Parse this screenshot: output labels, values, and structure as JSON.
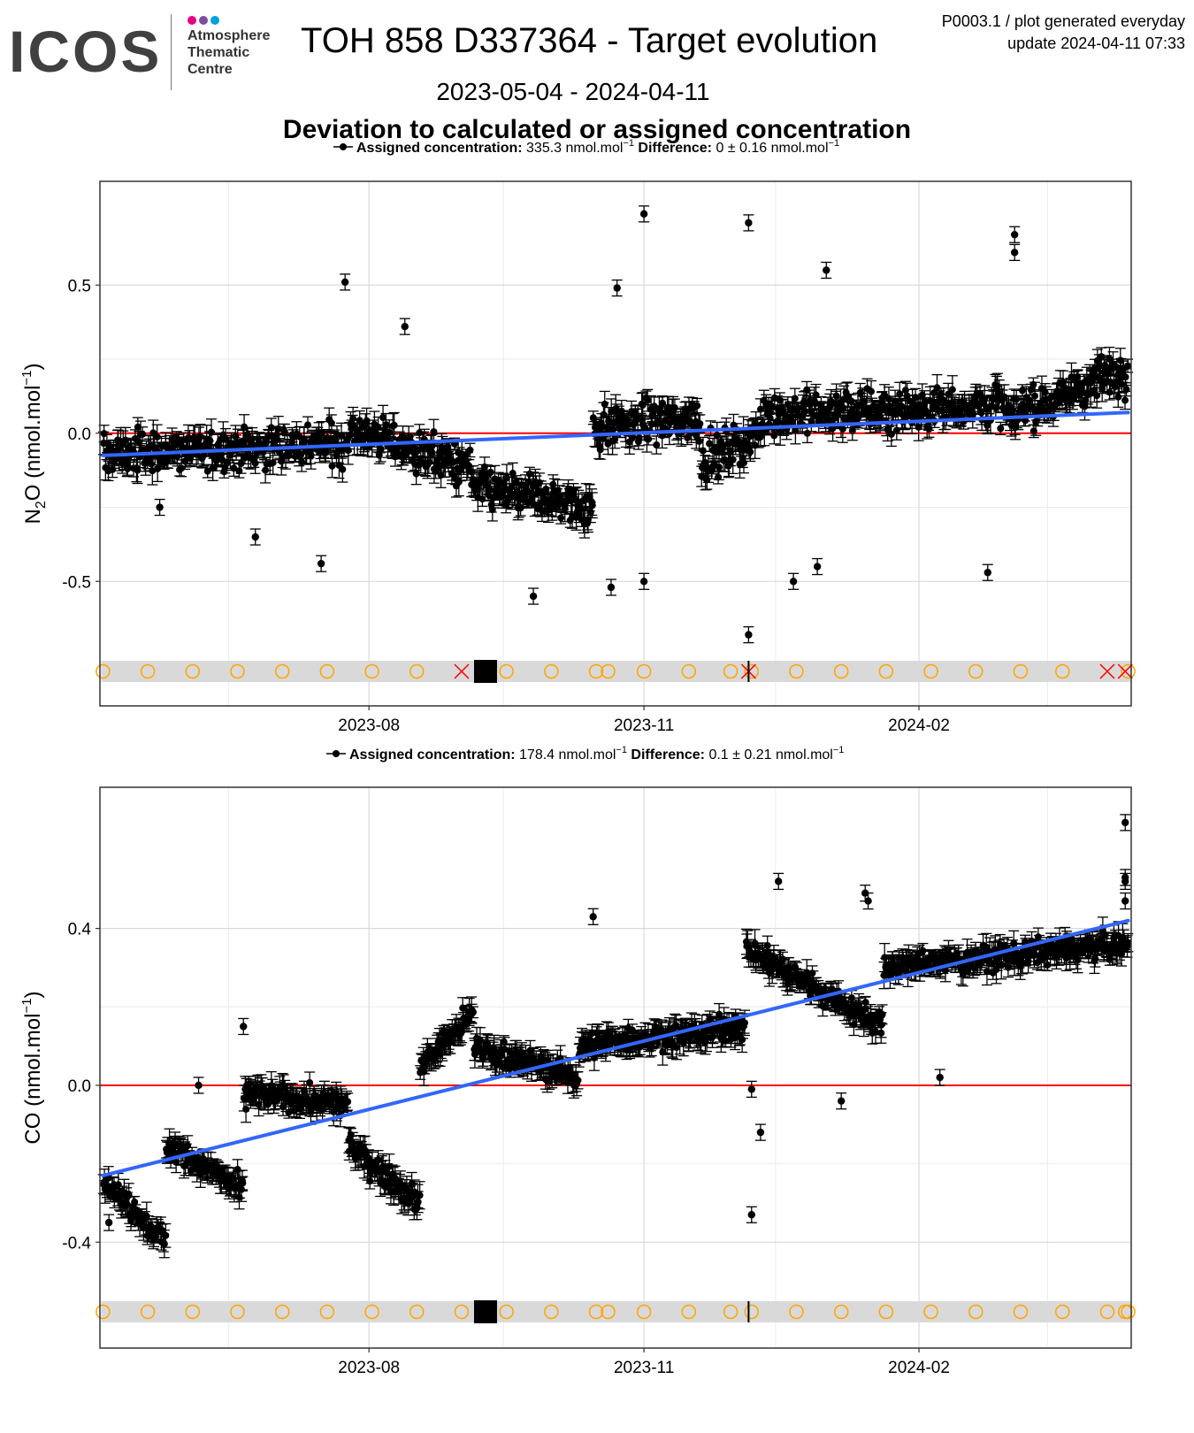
{
  "header": {
    "logo_text": "ICOS",
    "logo_sub1": "Atmosphere",
    "logo_sub2": "Thematic",
    "logo_sub3": "Centre",
    "logo_dot_colors": [
      "#e5007e",
      "#7b4fa0",
      "#00a1d9"
    ],
    "title": "TOH 858 D337364 - Target evolution",
    "meta_line1": "P0003.1 / plot generated everyday",
    "meta_line2": "update  2024-04-11 07:33",
    "date_range": "2023-05-04 - 2024-04-11",
    "subtitle": "Deviation to calculated or assigned concentration"
  },
  "chart_data": [
    {
      "type": "scatter",
      "legend": {
        "label_bold": "Assigned concentration:",
        "value": "335.3 nmol.mol",
        "value_sup": "−1",
        "diff_bold": "Difference:",
        "diff_value": "0 ± 0.16 nmol.mol",
        "diff_sup": "−1"
      },
      "ylabel_main": "N",
      "ylabel_sub": "2",
      "ylabel_rest": "O (nmol.mol",
      "ylabel_sup": "−1",
      "ylabel_end": ")",
      "xlim": [
        "2023-05-03",
        "2024-04-12"
      ],
      "ylim": [
        -0.92,
        0.85
      ],
      "yticks": [
        -0.5,
        0.0,
        0.5
      ],
      "ytick_labels": [
        "-0.5",
        "0.0",
        "0.5"
      ],
      "xticks": [
        "2023-08-01",
        "2023-11-01",
        "2024-02-01"
      ],
      "xtick_labels": [
        "2023-08",
        "2023-11",
        "2024-02"
      ],
      "reference_line": 0.0,
      "trend": {
        "start": [
          "2023-05-04",
          -0.075
        ],
        "end": [
          "2024-04-11",
          0.07
        ]
      },
      "colors": {
        "points": "#000000",
        "trend": "#3366ff",
        "reference": "#ff0000",
        "markers": "#ffa500",
        "cross": "#ff0000"
      },
      "noise_sd": 0.09,
      "segments": [
        [
          "2023-05-04",
          "2023-07-25",
          -0.07,
          -0.035
        ],
        [
          "2023-07-25",
          "2023-09-04",
          0.02,
          -0.12
        ],
        [
          "2023-09-04",
          "2023-10-15",
          -0.18,
          -0.25
        ],
        [
          "2023-10-15",
          "2023-11-20",
          0.02,
          0.05
        ],
        [
          "2023-11-20",
          "2023-12-10",
          -0.1,
          0.0
        ],
        [
          "2023-12-10",
          "2024-03-01",
          0.06,
          0.1
        ],
        [
          "2024-03-01",
          "2024-04-11",
          0.05,
          0.22
        ]
      ],
      "outliers": [
        [
          "2023-07-24",
          0.51
        ],
        [
          "2023-08-13",
          0.36
        ],
        [
          "2023-10-23",
          0.49
        ],
        [
          "2023-11-01",
          0.74
        ],
        [
          "2023-12-06",
          0.71
        ],
        [
          "2023-12-06",
          -0.68
        ],
        [
          "2024-01-01",
          0.55
        ],
        [
          "2024-03-04",
          0.67
        ],
        [
          "2024-03-04",
          0.61
        ],
        [
          "2023-09-25",
          -0.55
        ],
        [
          "2023-12-21",
          -0.5
        ],
        [
          "2023-06-24",
          -0.35
        ],
        [
          "2023-07-16",
          -0.44
        ],
        [
          "2023-10-21",
          -0.52
        ],
        [
          "2023-11-01",
          -0.5
        ],
        [
          "2024-02-24",
          -0.47
        ],
        [
          "2023-12-29",
          -0.45
        ],
        [
          "2023-05-23",
          -0.25
        ]
      ],
      "marker_circles": [
        "2023-05-04",
        "2023-05-19",
        "2023-06-03",
        "2023-06-18",
        "2023-07-03",
        "2023-07-18",
        "2023-08-02",
        "2023-08-17",
        "2023-09-16",
        "2023-10-01",
        "2023-10-16",
        "2023-10-20",
        "2023-11-01",
        "2023-11-16",
        "2023-11-30",
        "2023-12-07",
        "2023-12-22",
        "2024-01-06",
        "2024-01-21",
        "2024-02-05",
        "2024-02-20",
        "2024-03-06",
        "2024-03-20",
        "2024-04-11"
      ],
      "marker_crosses": [
        "2023-09-01",
        "2023-12-06",
        "2024-03-35",
        "2024-04-10"
      ],
      "marker_block": "2023-09-09",
      "marker_tick": "2023-12-06"
    },
    {
      "type": "scatter",
      "legend": {
        "label_bold": "Assigned concentration:",
        "value": "178.4 nmol.mol",
        "value_sup": "−1",
        "diff_bold": "Difference:",
        "diff_value": "0.1 ± 0.21 nmol.mol",
        "diff_sup": "−1"
      },
      "ylabel_main": "CO (nmol.mol",
      "ylabel_sup": "−1",
      "ylabel_end": ")",
      "xlim": [
        "2023-05-03",
        "2024-04-12"
      ],
      "ylim": [
        -0.67,
        0.76
      ],
      "yticks": [
        -0.4,
        0.0,
        0.4
      ],
      "ytick_labels": [
        "-0.4",
        "0.0",
        "0.4"
      ],
      "xticks": [
        "2023-08-01",
        "2023-11-01",
        "2024-02-01"
      ],
      "xtick_labels": [
        "2023-08",
        "2023-11",
        "2024-02"
      ],
      "reference_line": 0.0,
      "trend": {
        "start": [
          "2023-05-04",
          -0.23
        ],
        "end": [
          "2024-04-11",
          0.42
        ]
      },
      "colors": {
        "points": "#000000",
        "trend": "#3366ff",
        "reference": "#ff0000",
        "markers": "#ffa500"
      },
      "noise_sd": 0.04,
      "segments": [
        [
          "2023-05-04",
          "2023-05-25",
          -0.24,
          -0.4
        ],
        [
          "2023-05-25",
          "2023-06-20",
          -0.15,
          -0.27
        ],
        [
          "2023-06-20",
          "2023-07-25",
          -0.02,
          -0.05
        ],
        [
          "2023-07-25",
          "2023-08-18",
          -0.15,
          -0.3
        ],
        [
          "2023-08-18",
          "2023-09-05",
          0.05,
          0.18
        ],
        [
          "2023-09-05",
          "2023-10-10",
          0.1,
          0.02
        ],
        [
          "2023-10-10",
          "2023-12-05",
          0.1,
          0.15
        ],
        [
          "2023-12-05",
          "2024-01-20",
          0.35,
          0.15
        ],
        [
          "2024-01-20",
          "2024-04-11",
          0.3,
          0.36
        ]
      ],
      "outliers": [
        [
          "2023-06-20",
          0.15
        ],
        [
          "2023-10-15",
          0.43
        ],
        [
          "2023-12-16",
          0.52
        ],
        [
          "2024-01-14",
          0.49
        ],
        [
          "2024-01-15",
          0.47
        ],
        [
          "2024-04-10",
          0.67
        ],
        [
          "2024-04-10",
          0.53
        ],
        [
          "2024-04-10",
          0.52
        ],
        [
          "2024-04-10",
          0.47
        ],
        [
          "2023-12-07",
          -0.33
        ],
        [
          "2023-12-10",
          -0.12
        ],
        [
          "2023-12-07",
          -0.01
        ],
        [
          "2023-05-06",
          -0.35
        ],
        [
          "2023-06-05",
          0.0
        ],
        [
          "2024-01-06",
          -0.04
        ],
        [
          "2024-02-08",
          0.02
        ]
      ],
      "marker_circles": [
        "2023-05-04",
        "2023-05-19",
        "2023-06-03",
        "2023-06-18",
        "2023-07-03",
        "2023-07-18",
        "2023-08-02",
        "2023-08-17",
        "2023-09-01",
        "2023-09-16",
        "2023-10-01",
        "2023-10-16",
        "2023-10-20",
        "2023-11-01",
        "2023-11-16",
        "2023-11-30",
        "2023-12-07",
        "2023-12-22",
        "2024-01-06",
        "2024-01-21",
        "2024-02-05",
        "2024-02-20",
        "2024-03-06",
        "2024-03-20",
        "2024-04-04",
        "2024-04-10",
        "2024-04-11"
      ],
      "marker_block": "2023-09-09",
      "marker_tick": "2023-12-06"
    }
  ]
}
